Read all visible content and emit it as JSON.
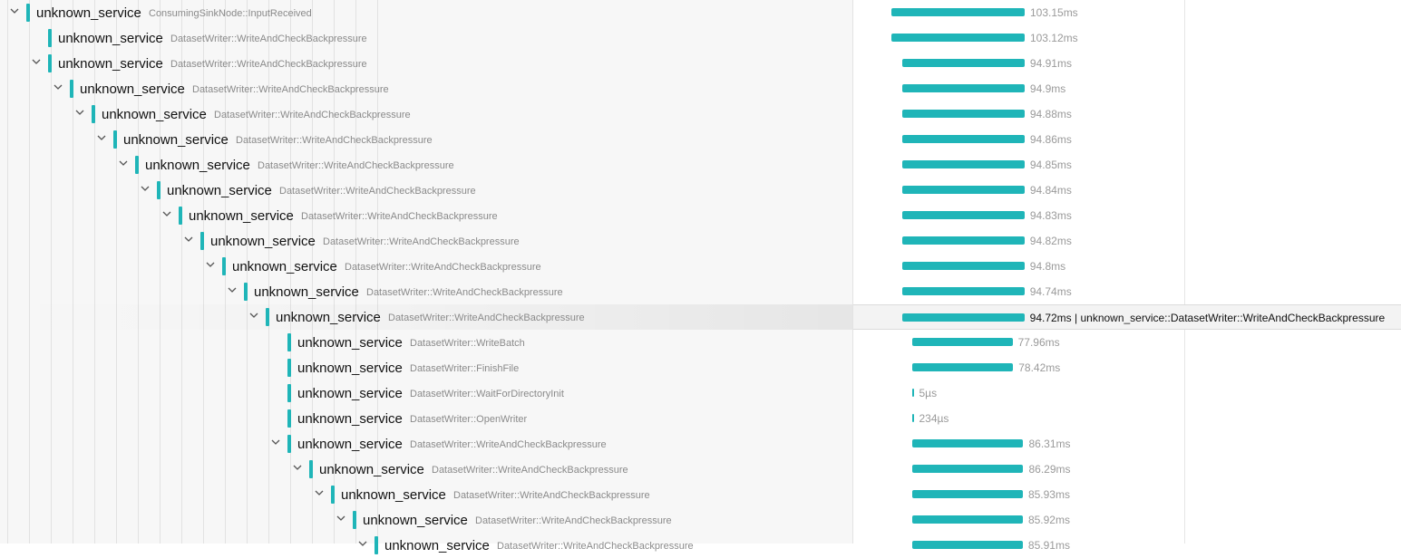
{
  "spans": [
    {
      "service": "unknown_service",
      "operation": "ConsumingSinkNode::InputReceived",
      "duration": "103.15ms",
      "depth": 0,
      "expand": "chevron-down",
      "bar_start_ms": 0.0,
      "hover": false
    },
    {
      "service": "unknown_service",
      "operation": "DatasetWriter::WriteAndCheckBackpressure",
      "duration": "103.12ms",
      "depth": 1,
      "expand": "none",
      "bar_start_ms": 0.0,
      "hover": false
    },
    {
      "service": "unknown_service",
      "operation": "DatasetWriter::WriteAndCheckBackpressure",
      "duration": "94.91ms",
      "depth": 1,
      "expand": "chevron-down",
      "bar_start_ms": 8.2,
      "hover": false
    },
    {
      "service": "unknown_service",
      "operation": "DatasetWriter::WriteAndCheckBackpressure",
      "duration": "94.9ms",
      "depth": 2,
      "expand": "chevron-down",
      "bar_start_ms": 8.2,
      "hover": false
    },
    {
      "service": "unknown_service",
      "operation": "DatasetWriter::WriteAndCheckBackpressure",
      "duration": "94.88ms",
      "depth": 3,
      "expand": "chevron-down",
      "bar_start_ms": 8.2,
      "hover": false
    },
    {
      "service": "unknown_service",
      "operation": "DatasetWriter::WriteAndCheckBackpressure",
      "duration": "94.86ms",
      "depth": 4,
      "expand": "chevron-down",
      "bar_start_ms": 8.2,
      "hover": false
    },
    {
      "service": "unknown_service",
      "operation": "DatasetWriter::WriteAndCheckBackpressure",
      "duration": "94.85ms",
      "depth": 5,
      "expand": "chevron-down",
      "bar_start_ms": 8.2,
      "hover": false
    },
    {
      "service": "unknown_service",
      "operation": "DatasetWriter::WriteAndCheckBackpressure",
      "duration": "94.84ms",
      "depth": 6,
      "expand": "chevron-down",
      "bar_start_ms": 8.2,
      "hover": false
    },
    {
      "service": "unknown_service",
      "operation": "DatasetWriter::WriteAndCheckBackpressure",
      "duration": "94.83ms",
      "depth": 7,
      "expand": "chevron-down",
      "bar_start_ms": 8.2,
      "hover": false
    },
    {
      "service": "unknown_service",
      "operation": "DatasetWriter::WriteAndCheckBackpressure",
      "duration": "94.82ms",
      "depth": 8,
      "expand": "chevron-down",
      "bar_start_ms": 8.2,
      "hover": false
    },
    {
      "service": "unknown_service",
      "operation": "DatasetWriter::WriteAndCheckBackpressure",
      "duration": "94.8ms",
      "depth": 9,
      "expand": "chevron-down",
      "bar_start_ms": 8.2,
      "hover": false
    },
    {
      "service": "unknown_service",
      "operation": "DatasetWriter::WriteAndCheckBackpressure",
      "duration": "94.74ms",
      "depth": 10,
      "expand": "chevron-down",
      "bar_start_ms": 8.2,
      "hover": false
    },
    {
      "service": "unknown_service",
      "operation": "DatasetWriter::WriteAndCheckBackpressure",
      "duration": "94.72ms",
      "duration_label": "94.72ms | unknown_service::DatasetWriter::WriteAndCheckBackpressure",
      "depth": 11,
      "expand": "chevron-down",
      "bar_start_ms": 8.2,
      "hover": true
    },
    {
      "service": "unknown_service",
      "operation": "DatasetWriter::WriteBatch",
      "duration": "77.96ms",
      "depth": 12,
      "expand": "none",
      "bar_start_ms": 15.8,
      "hover": false
    },
    {
      "service": "unknown_service",
      "operation": "DatasetWriter::FinishFile",
      "duration": "78.42ms",
      "depth": 12,
      "expand": "none",
      "bar_start_ms": 15.8,
      "hover": false
    },
    {
      "service": "unknown_service",
      "operation": "DatasetWriter::WaitForDirectoryInit",
      "duration": "5µs",
      "depth": 12,
      "expand": "none",
      "bar_start_ms": 15.8,
      "hover": false
    },
    {
      "service": "unknown_service",
      "operation": "DatasetWriter::OpenWriter",
      "duration": "234µs",
      "depth": 12,
      "expand": "none",
      "bar_start_ms": 15.8,
      "hover": false
    },
    {
      "service": "unknown_service",
      "operation": "DatasetWriter::WriteAndCheckBackpressure",
      "duration": "86.31ms",
      "depth": 12,
      "expand": "chevron-down",
      "bar_start_ms": 15.8,
      "hover": false
    },
    {
      "service": "unknown_service",
      "operation": "DatasetWriter::WriteAndCheckBackpressure",
      "duration": "86.29ms",
      "depth": 13,
      "expand": "chevron-down",
      "bar_start_ms": 15.8,
      "hover": false
    },
    {
      "service": "unknown_service",
      "operation": "DatasetWriter::WriteAndCheckBackpressure",
      "duration": "85.93ms",
      "depth": 14,
      "expand": "chevron-down",
      "bar_start_ms": 15.8,
      "hover": false
    },
    {
      "service": "unknown_service",
      "operation": "DatasetWriter::WriteAndCheckBackpressure",
      "duration": "85.92ms",
      "depth": 15,
      "expand": "chevron-down",
      "bar_start_ms": 15.8,
      "hover": false
    },
    {
      "service": "unknown_service",
      "operation": "DatasetWriter::WriteAndCheckBackpressure",
      "duration": "85.91ms",
      "depth": 16,
      "expand": "chevron-down",
      "bar_start_ms": 15.8,
      "hover": false
    }
  ],
  "colors": {
    "span_accent": "#1fb5b8",
    "service_text": "#111111",
    "operation_text": "#8a8a8a",
    "duration_text": "#9a9a9a"
  }
}
